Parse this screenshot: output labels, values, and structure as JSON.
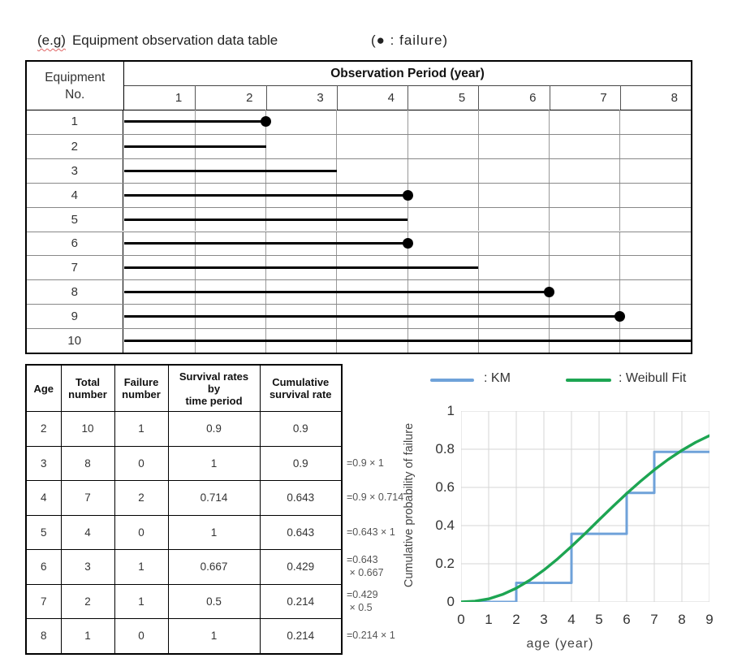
{
  "header": {
    "eg_label": "(e.g)",
    "title": "Equipment observation data table",
    "failure_legend": "(● : failure)"
  },
  "observation_table": {
    "corner_header": "Equipment\nNo.",
    "period_header": "Observation Period (year)",
    "year_columns": [
      "1",
      "2",
      "3",
      "4",
      "5",
      "6",
      "7",
      "8"
    ],
    "equipment": [
      {
        "no": "1",
        "end_year": 2,
        "failure": true
      },
      {
        "no": "2",
        "end_year": 2,
        "failure": false
      },
      {
        "no": "3",
        "end_year": 3,
        "failure": false
      },
      {
        "no": "4",
        "end_year": 4,
        "failure": true
      },
      {
        "no": "5",
        "end_year": 4,
        "failure": false
      },
      {
        "no": "6",
        "end_year": 4,
        "failure": true
      },
      {
        "no": "7",
        "end_year": 5,
        "failure": false
      },
      {
        "no": "8",
        "end_year": 6,
        "failure": true
      },
      {
        "no": "9",
        "end_year": 7,
        "failure": true
      },
      {
        "no": "10",
        "end_year": 8,
        "failure": false
      }
    ]
  },
  "survival_table": {
    "headers": [
      "Age",
      "Total\nnumber",
      "Failure\nnumber",
      "Survival rates\nby\ntime period",
      "Cumulative\nsurvival rate"
    ],
    "rows": [
      {
        "age": "2",
        "total": "10",
        "failures": "1",
        "rate": "0.9",
        "cumulative": "0.9",
        "note": ""
      },
      {
        "age": "3",
        "total": "8",
        "failures": "0",
        "rate": "1",
        "cumulative": "0.9",
        "note": "=0.9 × 1"
      },
      {
        "age": "4",
        "total": "7",
        "failures": "2",
        "rate": "0.714",
        "cumulative": "0.643",
        "note": "=0.9 × 0.714"
      },
      {
        "age": "5",
        "total": "4",
        "failures": "0",
        "rate": "1",
        "cumulative": "0.643",
        "note": "=0.643 × 1"
      },
      {
        "age": "6",
        "total": "3",
        "failures": "1",
        "rate": "0.667",
        "cumulative": "0.429",
        "note": "=0.643\n × 0.667"
      },
      {
        "age": "7",
        "total": "2",
        "failures": "1",
        "rate": "0.5",
        "cumulative": "0.214",
        "note": "=0.429\n × 0.5"
      },
      {
        "age": "8",
        "total": "1",
        "failures": "0",
        "rate": "1",
        "cumulative": "0.214",
        "note": "=0.214 × 1"
      }
    ]
  },
  "chart_data": {
    "type": "line",
    "title": "",
    "xlabel": "age (year)",
    "ylabel": "Cumulative probability of failure",
    "xlim": [
      0,
      9
    ],
    "ylim": [
      0,
      1
    ],
    "xticks": [
      "0",
      "1",
      "2",
      "3",
      "4",
      "5",
      "6",
      "7",
      "8",
      "9"
    ],
    "yticks": [
      "0",
      "0.2",
      "0.4",
      "0.6",
      "0.8",
      "1"
    ],
    "ytick_values": [
      0,
      0.2,
      0.4,
      0.6,
      0.8,
      1
    ],
    "grid": true,
    "grid_color": "#d6d6d6",
    "legend_position": "top",
    "legend": [
      {
        "label": ": KM",
        "color": "#6fa2d9"
      },
      {
        "label": ": Weibull Fit",
        "color": "#1da552"
      }
    ],
    "series": [
      {
        "name": "KM",
        "type": "step",
        "color": "#6fa2d9",
        "points": [
          [
            0,
            0
          ],
          [
            2,
            0
          ],
          [
            2,
            0.1
          ],
          [
            4,
            0.1
          ],
          [
            4,
            0.357
          ],
          [
            6,
            0.357
          ],
          [
            6,
            0.571
          ],
          [
            7,
            0.571
          ],
          [
            7,
            0.786
          ],
          [
            9,
            0.786
          ]
        ]
      },
      {
        "name": "Weibull Fit",
        "type": "smooth",
        "color": "#1da552",
        "points": [
          [
            0,
            0
          ],
          [
            0.5,
            0.004
          ],
          [
            1,
            0.016
          ],
          [
            1.5,
            0.039
          ],
          [
            2,
            0.072
          ],
          [
            2.5,
            0.115
          ],
          [
            3,
            0.167
          ],
          [
            3.5,
            0.226
          ],
          [
            4,
            0.291
          ],
          [
            4.5,
            0.359
          ],
          [
            5,
            0.43
          ],
          [
            5.5,
            0.5
          ],
          [
            6,
            0.568
          ],
          [
            6.5,
            0.632
          ],
          [
            7,
            0.692
          ],
          [
            7.5,
            0.746
          ],
          [
            8,
            0.794
          ],
          [
            8.5,
            0.836
          ],
          [
            9,
            0.871
          ]
        ]
      }
    ]
  }
}
